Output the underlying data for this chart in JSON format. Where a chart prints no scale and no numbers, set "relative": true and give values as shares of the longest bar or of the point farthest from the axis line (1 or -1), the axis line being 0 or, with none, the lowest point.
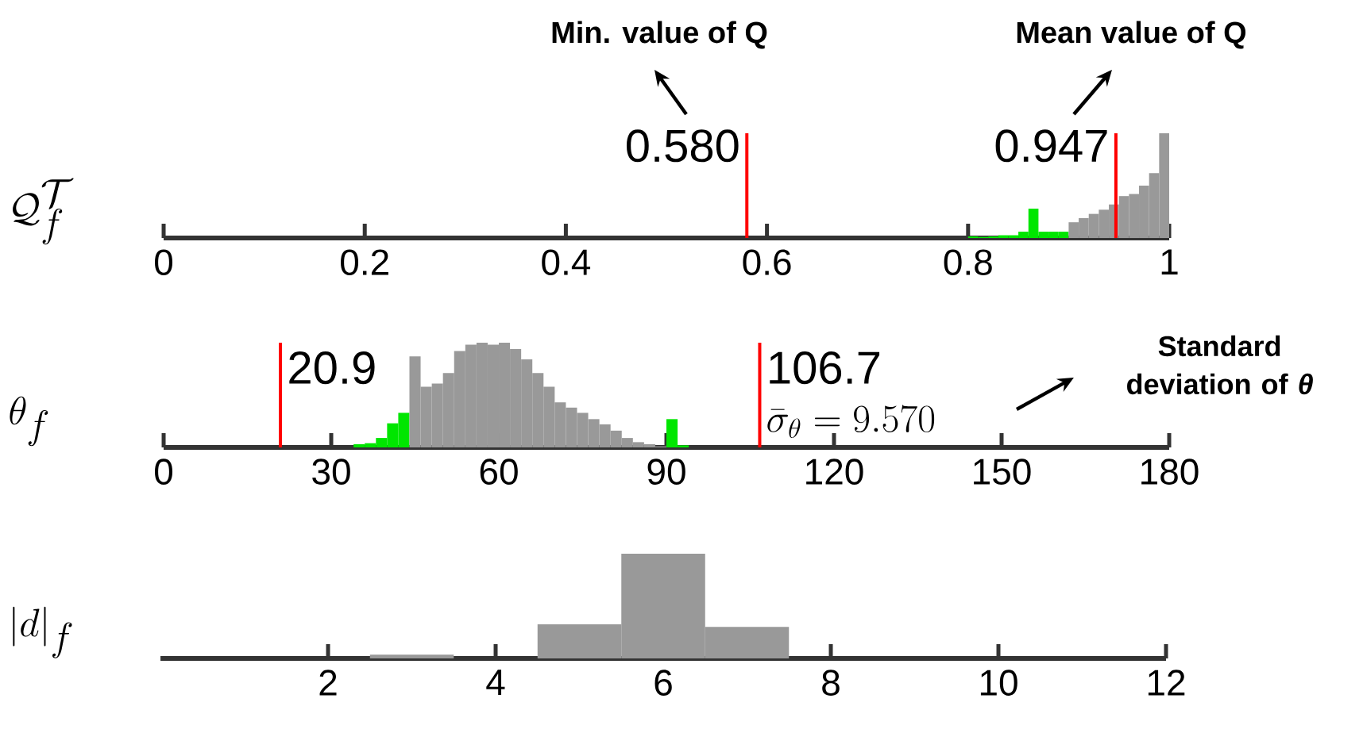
{
  "chart_data": [
    {
      "type": "bar",
      "ylabel": "\\mathcal{Q}_f^{\\mathcal{T}}",
      "relative": true,
      "x": [
        0.805,
        0.815,
        0.825,
        0.835,
        0.845,
        0.855,
        0.865,
        0.875,
        0.885,
        0.895,
        0.905,
        0.915,
        0.925,
        0.935,
        0.945,
        0.955,
        0.965,
        0.975,
        0.985,
        0.995
      ],
      "values": [
        0.015,
        0.01,
        0.015,
        0.026,
        0.026,
        0.06,
        0.28,
        0.06,
        0.06,
        0.06,
        0.15,
        0.19,
        0.23,
        0.27,
        0.32,
        0.4,
        0.42,
        0.5,
        0.62,
        1
      ],
      "colors": [
        "#00e600",
        "#00e600",
        "#00e600",
        "#00e600",
        "#00e600",
        "#00e600",
        "#00e600",
        "#00e600",
        "#00e600",
        "#00e600",
        "#999999",
        "#999999",
        "#999999",
        "#999999",
        "#999999",
        "#999999",
        "#999999",
        "#999999",
        "#999999",
        "#999999"
      ],
      "xlim": [
        0,
        1
      ],
      "xticks": [
        0,
        0.2,
        0.4,
        0.6,
        0.8,
        1
      ],
      "ref_lines": [
        {
          "axis": "x",
          "value": 0.58,
          "label": "0.580",
          "color": "#ff0000"
        },
        {
          "axis": "x",
          "value": 0.947,
          "label": "0.947",
          "color": "#ff0000"
        }
      ],
      "annotations": [
        "Min. value of Q",
        "Mean value of Q"
      ]
    },
    {
      "type": "bar",
      "ylabel": "\\theta_f",
      "relative": true,
      "x": [
        35,
        37,
        39,
        41,
        43,
        45,
        47,
        49,
        51,
        53,
        55,
        57,
        59,
        61,
        63,
        65,
        67,
        69,
        71,
        73,
        75,
        77,
        79,
        81,
        83,
        85,
        87,
        89,
        91,
        93
      ],
      "values": [
        0.03,
        0.04,
        0.09,
        0.23,
        0.33,
        0.87,
        0.58,
        0.61,
        0.71,
        0.92,
        0.98,
        1,
        0.98,
        1,
        0.94,
        0.84,
        0.71,
        0.58,
        0.43,
        0.38,
        0.33,
        0.27,
        0.22,
        0.16,
        0.09,
        0.05,
        0.03,
        0.01,
        0.27,
        0.02
      ],
      "colors": [
        "#00e600",
        "#00e600",
        "#00e600",
        "#00e600",
        "#00e600",
        "#999999",
        "#999999",
        "#999999",
        "#999999",
        "#999999",
        "#999999",
        "#999999",
        "#999999",
        "#999999",
        "#999999",
        "#999999",
        "#999999",
        "#999999",
        "#999999",
        "#999999",
        "#999999",
        "#999999",
        "#999999",
        "#999999",
        "#999999",
        "#999999",
        "#999999",
        "#999999",
        "#00e600",
        "#00e600"
      ],
      "xlim": [
        0,
        180
      ],
      "xticks": [
        0,
        30,
        60,
        90,
        120,
        150,
        180
      ],
      "ref_lines": [
        {
          "axis": "x",
          "value": 20.9,
          "label": "20.9",
          "color": "#ff0000"
        },
        {
          "axis": "x",
          "value": 106.7,
          "label": "106.7",
          "color": "#ff0000"
        }
      ],
      "annotations": [
        "\\bar{\\sigma}_{\\theta}=9.570",
        "Standard deviation of *θ*"
      ]
    },
    {
      "type": "bar",
      "ylabel": "|d|_f",
      "relative": true,
      "x": [
        3,
        4,
        5,
        6,
        7
      ],
      "values": [
        0.036,
        0,
        0.325,
        1,
        0.3
      ],
      "colors": [
        "#999999",
        "#999999",
        "#999999",
        "#999999",
        "#999999"
      ],
      "xlim": [
        0,
        12
      ],
      "xticks": [
        2,
        4,
        6,
        8,
        10,
        12
      ]
    }
  ]
}
